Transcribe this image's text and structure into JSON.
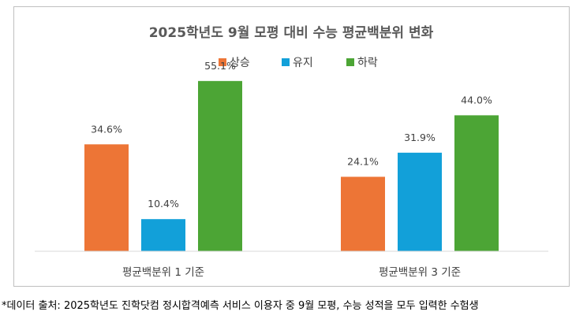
{
  "chart_data": {
    "type": "bar",
    "title": "2025학년도 9월 모평 대비 수능 평균백분위 변화",
    "categories": [
      "평균백분위 1 기준",
      "평균백분위 3 기준"
    ],
    "series": [
      {
        "name": "상승",
        "color": "#ED7536",
        "values": [
          34.6,
          24.1
        ],
        "labels": [
          "34.6%",
          "24.1%"
        ]
      },
      {
        "name": "유지",
        "color": "#12A0D9",
        "values": [
          10.4,
          31.9
        ],
        "labels": [
          "10.4%",
          "31.9%"
        ]
      },
      {
        "name": "하락",
        "color": "#4CA535",
        "values": [
          55.1,
          44.0
        ],
        "labels": [
          "55.1%",
          "44.0%"
        ]
      }
    ],
    "ylim": [
      0,
      65
    ],
    "grid": false,
    "legend_position": "top"
  },
  "footnote": "*데이터 출처: 2025학년도 진학닷컴 정시합격예측 서비스 이용자 중 9월 모평, 수능 성적을 모두 입력한 수험생"
}
